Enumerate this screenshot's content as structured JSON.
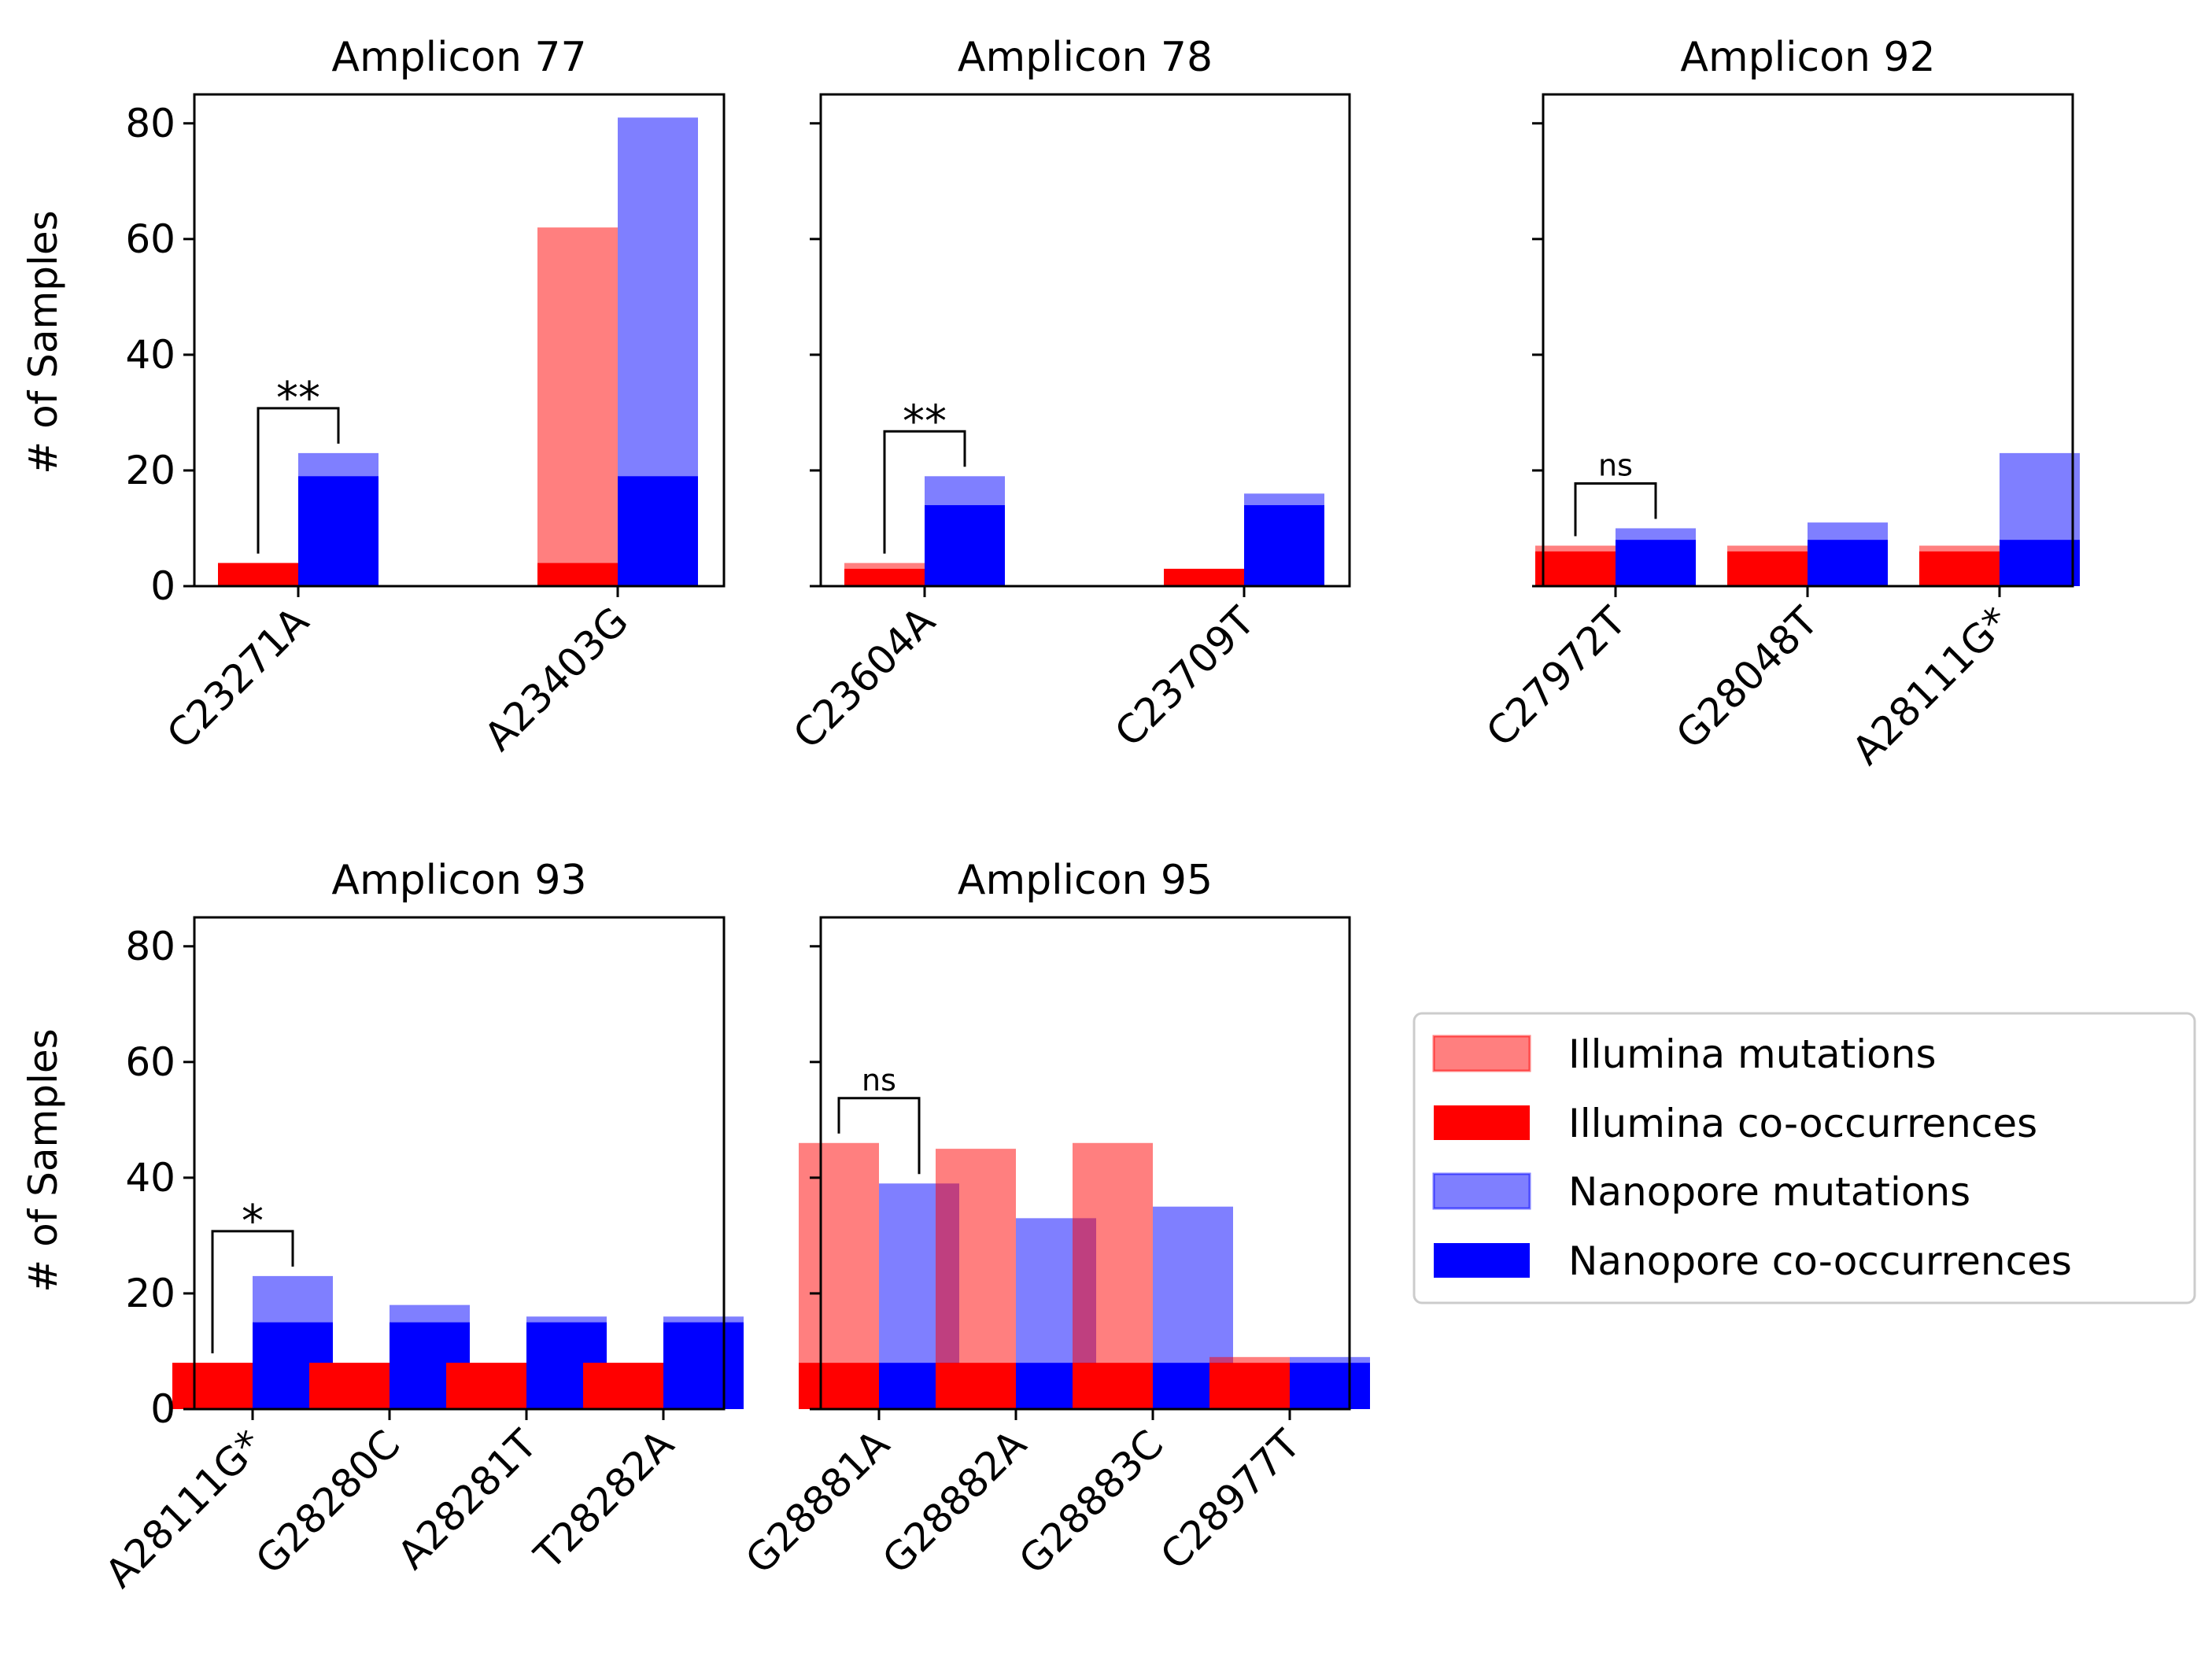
{
  "figure": {
    "ylabel": "# of Samples"
  },
  "legend": {
    "placement": "center-right",
    "items": [
      {
        "label": "Illumina mutations",
        "color": "#ff8080"
      },
      {
        "label": "Illumina co-occurrences",
        "color": "#ff0000"
      },
      {
        "label": "Nanopore mutations",
        "color": "#8080ff"
      },
      {
        "label": "Nanopore co-occurrences",
        "color": "#0000ff"
      }
    ]
  },
  "chart_data": [
    {
      "type": "bar",
      "title": "Amplicon 77",
      "ylabel": "# of Samples",
      "ylim": [
        0,
        85
      ],
      "yticks": [
        0,
        20,
        40,
        60,
        80
      ],
      "categories": [
        "C23271A",
        "A23403G"
      ],
      "series": [
        {
          "name": "Illumina mutations",
          "values": [
            4,
            62
          ]
        },
        {
          "name": "Illumina co-occurrences",
          "values": [
            4,
            4
          ]
        },
        {
          "name": "Nanopore mutations",
          "values": [
            23,
            81
          ]
        },
        {
          "name": "Nanopore co-occurrences",
          "values": [
            19,
            19
          ]
        }
      ],
      "annotations": [
        {
          "category": "C23271A",
          "label": "**"
        }
      ]
    },
    {
      "type": "bar",
      "title": "Amplicon 78",
      "ylabel": "",
      "ylim": [
        0,
        85
      ],
      "yticks": [
        0,
        20,
        40,
        60,
        80
      ],
      "categories": [
        "C23604A",
        "C23709T"
      ],
      "series": [
        {
          "name": "Illumina mutations",
          "values": [
            4,
            3
          ]
        },
        {
          "name": "Illumina co-occurrences",
          "values": [
            3,
            3
          ]
        },
        {
          "name": "Nanopore mutations",
          "values": [
            19,
            16
          ]
        },
        {
          "name": "Nanopore co-occurrences",
          "values": [
            14,
            14
          ]
        }
      ],
      "annotations": [
        {
          "category": "C23604A",
          "label": "**"
        }
      ]
    },
    {
      "type": "bar",
      "title": "Amplicon 92",
      "ylabel": "",
      "ylim": [
        0,
        85
      ],
      "yticks": [
        0,
        20,
        40,
        60,
        80
      ],
      "categories": [
        "C27972T",
        "G28048T",
        "A28111G*"
      ],
      "series": [
        {
          "name": "Illumina mutations",
          "values": [
            7,
            7,
            7
          ]
        },
        {
          "name": "Illumina co-occurrences",
          "values": [
            6,
            6,
            6
          ]
        },
        {
          "name": "Nanopore mutations",
          "values": [
            10,
            11,
            23
          ]
        },
        {
          "name": "Nanopore co-occurrences",
          "values": [
            8,
            8,
            8
          ]
        }
      ],
      "annotations": [
        {
          "category": "C27972T",
          "label": "ns"
        }
      ]
    },
    {
      "type": "bar",
      "title": "Amplicon 93",
      "ylabel": "# of Samples",
      "ylim": [
        0,
        85
      ],
      "yticks": [
        0,
        20,
        40,
        60,
        80
      ],
      "categories": [
        "A28111G*",
        "G28280C",
        "A28281T",
        "T28282A"
      ],
      "series": [
        {
          "name": "Illumina mutations",
          "values": [
            8,
            8,
            8,
            8
          ]
        },
        {
          "name": "Illumina co-occurrences",
          "values": [
            8,
            8,
            8,
            8
          ]
        },
        {
          "name": "Nanopore mutations",
          "values": [
            23,
            18,
            16,
            16
          ]
        },
        {
          "name": "Nanopore co-occurrences",
          "values": [
            15,
            15,
            15,
            15
          ]
        }
      ],
      "annotations": [
        {
          "category": "A28111G*",
          "label": "*"
        }
      ]
    },
    {
      "type": "bar",
      "title": "Amplicon 95",
      "ylabel": "",
      "ylim": [
        0,
        85
      ],
      "yticks": [
        0,
        20,
        40,
        60,
        80
      ],
      "categories": [
        "G28881A",
        "G28882A",
        "G28883C",
        "C28977T"
      ],
      "series": [
        {
          "name": "Illumina mutations",
          "values": [
            46,
            45,
            46,
            9
          ]
        },
        {
          "name": "Illumina co-occurrences",
          "values": [
            8,
            8,
            8,
            8
          ]
        },
        {
          "name": "Nanopore mutations",
          "values": [
            39,
            33,
            35,
            9
          ]
        },
        {
          "name": "Nanopore co-occurrences",
          "values": [
            8,
            8,
            8,
            8
          ]
        }
      ],
      "annotations": [
        {
          "category": "G28881A",
          "label": "ns"
        }
      ]
    }
  ]
}
